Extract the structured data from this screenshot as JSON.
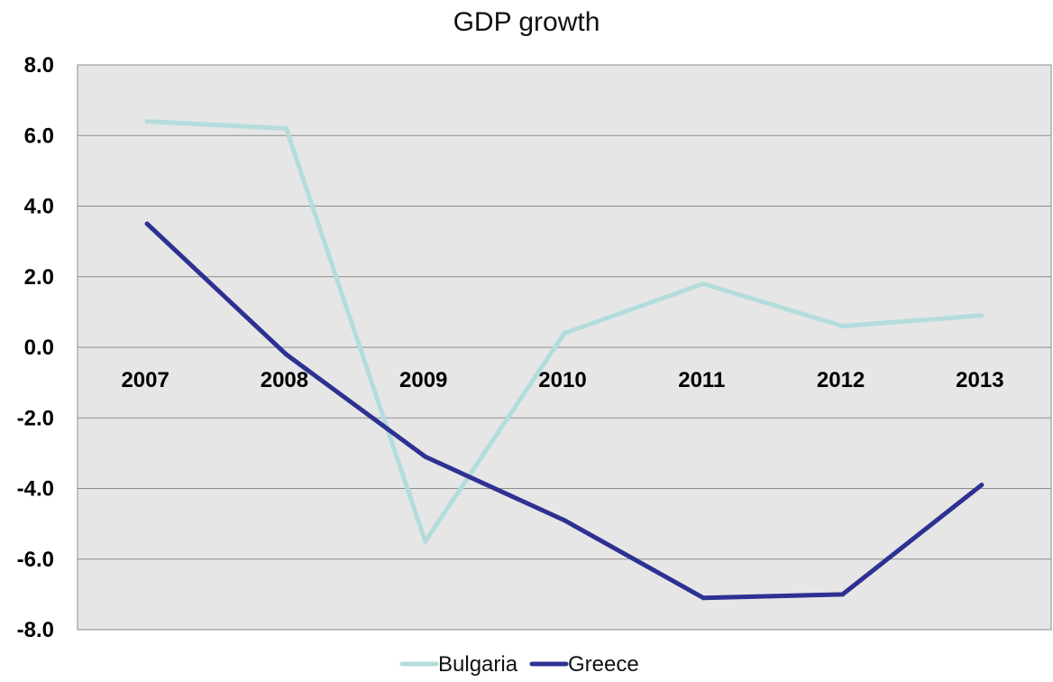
{
  "chart_data": {
    "type": "line",
    "title": "GDP growth",
    "xlabel": "",
    "ylabel": "",
    "categories": [
      "2007",
      "2008",
      "2009",
      "2010",
      "2011",
      "2012",
      "2013"
    ],
    "y_ticks": [
      "8.0",
      "6.0",
      "4.0",
      "2.0",
      "0.0",
      "-2.0",
      "-4.0",
      "-6.0",
      "-8.0"
    ],
    "ylim": [
      -8,
      8
    ],
    "grid": true,
    "legend_position": "bottom",
    "series": [
      {
        "name": "Bulgaria",
        "color": "#b4dcdc",
        "values": [
          6.4,
          6.2,
          -5.5,
          0.4,
          1.8,
          0.6,
          0.9
        ]
      },
      {
        "name": "Greece",
        "color": "#2e3192",
        "values": [
          3.5,
          -0.2,
          -3.1,
          -4.9,
          -7.1,
          -7.0,
          -3.9
        ]
      }
    ]
  }
}
